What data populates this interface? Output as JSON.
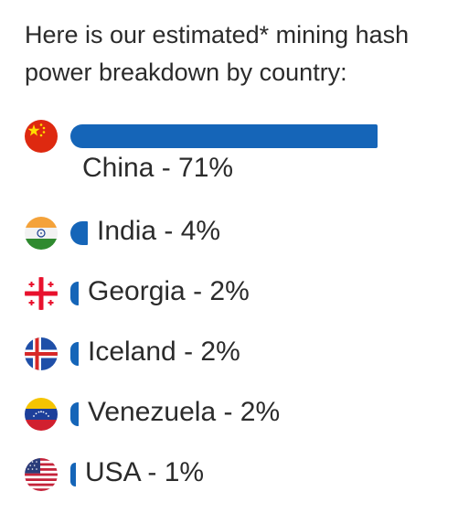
{
  "intro_text": "Here is our estimated* mining hash power breakdown by country:",
  "accent_color": "#1565b8",
  "chart_data": {
    "type": "bar",
    "orientation": "horizontal",
    "unit": "%",
    "categories": [
      "China",
      "India",
      "Georgia",
      "Iceland",
      "Venezuela",
      "USA"
    ],
    "values": [
      71,
      4,
      2,
      2,
      2,
      1
    ],
    "labels": [
      "China - 71%",
      "India - 4%",
      "Georgia - 2%",
      "Iceland - 2%",
      "Venezuela - 2%",
      "USA - 1%"
    ],
    "flag_icons": [
      "china-flag-icon",
      "india-flag-icon",
      "georgia-flag-icon",
      "iceland-flag-icon",
      "venezuela-flag-icon",
      "usa-flag-icon"
    ],
    "grid": false,
    "legend": false
  }
}
